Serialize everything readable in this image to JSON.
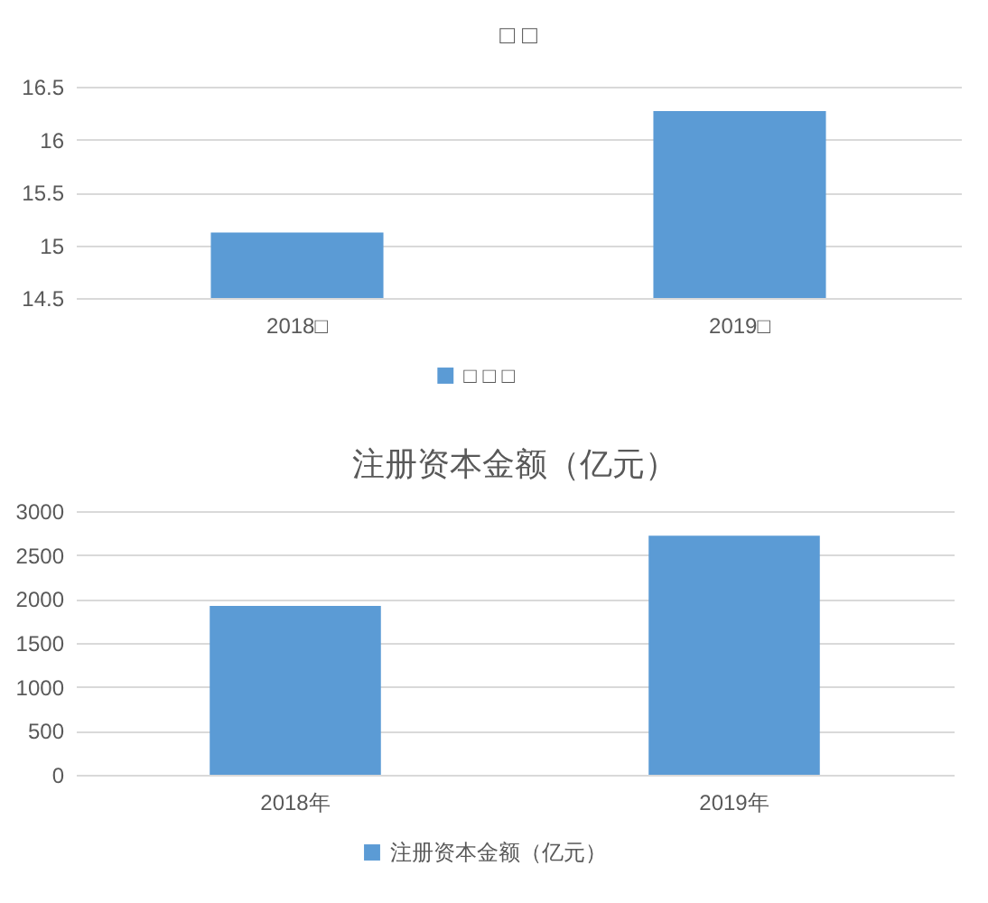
{
  "chart_data": [
    {
      "type": "bar",
      "title": "□ □",
      "categories": [
        "2018□",
        "2019□"
      ],
      "series": [
        {
          "name": "□ □ □",
          "color": "#5b9bd5",
          "values": [
            15.12,
            16.27
          ]
        }
      ],
      "ylim": [
        14.5,
        16.5
      ],
      "yticks": [
        14.5,
        15,
        15.5,
        16,
        16.5
      ],
      "grid": "y",
      "legend": "bottom"
    },
    {
      "type": "bar",
      "title": "注册资本金额（亿元）",
      "categories": [
        "2018年",
        "2019年"
      ],
      "series": [
        {
          "name": "注册资本金额（亿元）",
          "color": "#5b9bd5",
          "values": [
            1920,
            2720
          ]
        }
      ],
      "ylim": [
        0,
        3000
      ],
      "yticks": [
        0,
        500,
        1000,
        1500,
        2000,
        2500,
        3000
      ],
      "grid": "y",
      "legend": "bottom"
    }
  ]
}
